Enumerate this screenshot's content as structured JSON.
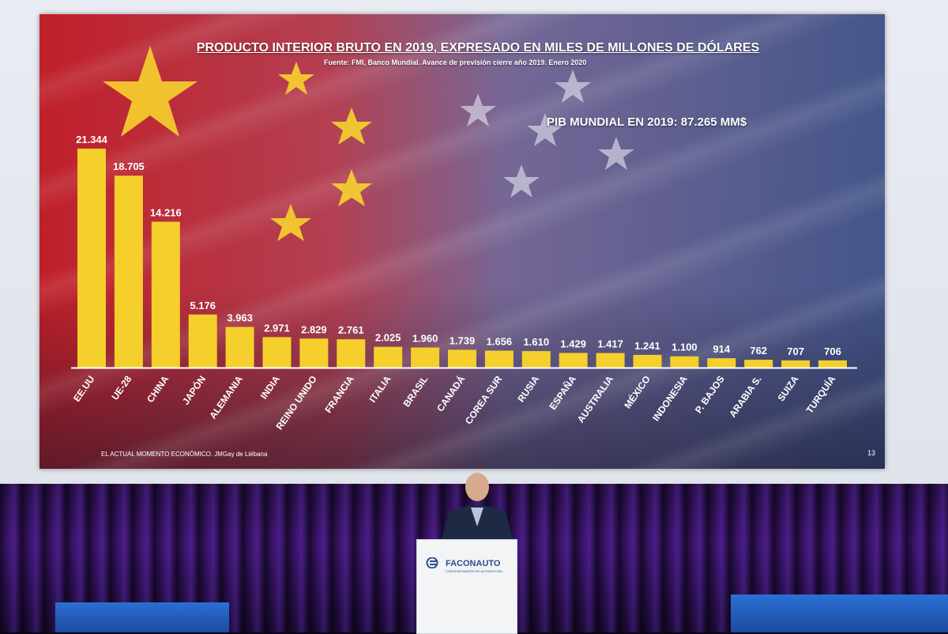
{
  "slide": {
    "title": "PRODUCTO INTERIOR BRUTO EN 2019, EXPRESADO EN MILES DE MILLONES DE DÓLARES",
    "subtitle": "Fuente: FMI, Banco Mundial. Avance de previsión cierre año 2019. Enero 2020",
    "annotation": "PIB MUNDIAL EN 2019: 87.265 MM$",
    "footer": "EL ACTUAL MOMENTO ECONÓMICO. JMGay de Liébana",
    "slide_number": "13"
  },
  "podium": {
    "brand": "FACONAUTO",
    "tagline": "CONCESIONARIOS DE AUTOMOCIÓN"
  },
  "colors": {
    "bar": "#f5cf2c",
    "label": "#ffffff",
    "axis": "#ffffff"
  },
  "chart_data": {
    "type": "bar",
    "title": "PRODUCTO INTERIOR BRUTO EN 2019, EXPRESADO EN MILES DE MILLONES DE DÓLARES",
    "categories": [
      "EE.UU",
      "UE-28",
      "CHINA",
      "JAPÓN",
      "ALEMANIA",
      "INDIA",
      "REINO UNIDO",
      "FRANCIA",
      "ITALIA",
      "BRASIL",
      "CANADÁ",
      "COREA SUR",
      "RUSIA",
      "ESPAÑA",
      "AUSTRALIA",
      "MÉXICO",
      "INDONESIA",
      "P. BAJOS",
      "ARABIA S.",
      "SUIZA",
      "TURQUÍA"
    ],
    "values": [
      21344,
      18705,
      14216,
      5176,
      3963,
      2971,
      2829,
      2761,
      2025,
      1960,
      1739,
      1656,
      1610,
      1429,
      1417,
      1241,
      1100,
      914,
      762,
      707,
      706
    ],
    "value_labels": [
      "21.344",
      "18.705",
      "14.216",
      "5.176",
      "3.963",
      "2.971",
      "2.829",
      "2.761",
      "2.025",
      "1.960",
      "1.739",
      "1.656",
      "1.610",
      "1.429",
      "1.417",
      "1.241",
      "1.100",
      "914",
      "762",
      "707",
      "706"
    ],
    "xlabel": "",
    "ylabel": "",
    "ylim": [
      0,
      21344
    ],
    "grid": false,
    "legend": "none"
  }
}
